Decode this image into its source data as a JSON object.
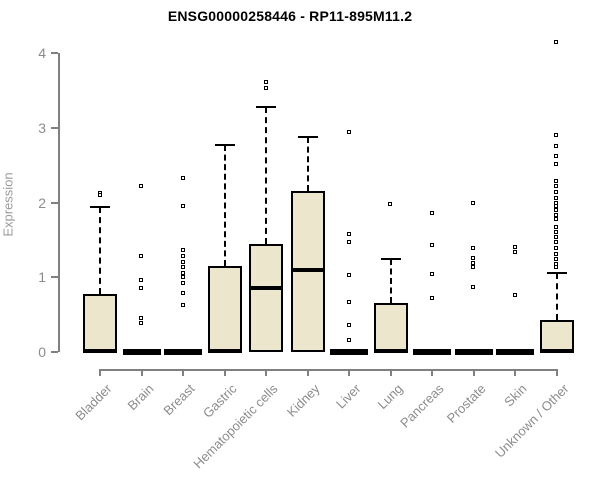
{
  "chart_data": {
    "type": "boxplot",
    "title": "ENSG00000258446 - RP11-895M11.2",
    "ylabel": "Expression",
    "xlabel": "",
    "ylim": [
      0,
      4
    ],
    "yticks": [
      "0",
      "1",
      "2",
      "3",
      "4"
    ],
    "grid": false,
    "legend": "none",
    "categories": [
      "Bladder",
      "Brain",
      "Breast",
      "Gastric",
      "Hematopoietic cells",
      "Kidney",
      "Liver",
      "Lung",
      "Pancreas",
      "Prostate",
      "Skin",
      "Unknown / Other"
    ],
    "boxes": [
      {
        "category": "Bladder",
        "min": 0,
        "q1": 0,
        "median": 0.02,
        "q3": 0.78,
        "max": 1.94,
        "outliers": [
          2.12,
          2.09
        ]
      },
      {
        "category": "Brain",
        "min": 0,
        "q1": 0,
        "median": 0,
        "q3": 0,
        "max": 0,
        "outliers": [
          2.21,
          1.28,
          0.95,
          0.85,
          0.45,
          0.38
        ]
      },
      {
        "category": "Breast",
        "min": 0,
        "q1": 0,
        "median": 0,
        "q3": 0,
        "max": 0,
        "outliers": [
          2.32,
          1.94,
          1.36,
          1.28,
          1.2,
          1.13,
          1.05,
          0.99,
          0.92,
          0.78,
          0.62
        ]
      },
      {
        "category": "Gastric",
        "min": 0,
        "q1": 0,
        "median": 0.02,
        "q3": 1.15,
        "max": 2.77,
        "outliers": []
      },
      {
        "category": "Hematopoietic cells",
        "min": 0,
        "q1": 0,
        "median": 0.86,
        "q3": 1.45,
        "max": 3.28,
        "outliers": [
          3.6,
          3.53
        ]
      },
      {
        "category": "Kidney",
        "min": 0,
        "q1": 0,
        "median": 1.1,
        "q3": 2.15,
        "max": 2.87,
        "outliers": []
      },
      {
        "category": "Liver",
        "min": 0,
        "q1": 0,
        "median": 0,
        "q3": 0,
        "max": 0,
        "outliers": [
          2.93,
          1.57,
          1.46,
          1.03,
          0.66,
          0.36,
          0.15
        ]
      },
      {
        "category": "Lung",
        "min": 0,
        "q1": 0,
        "median": 0.02,
        "q3": 0.66,
        "max": 1.24,
        "outliers": [
          1.97
        ]
      },
      {
        "category": "Pancreas",
        "min": 0,
        "q1": 0,
        "median": 0,
        "q3": 0,
        "max": 0,
        "outliers": [
          1.85,
          1.43,
          1.04,
          0.72
        ]
      },
      {
        "category": "Prostate",
        "min": 0,
        "q1": 0,
        "median": 0,
        "q3": 0,
        "max": 0,
        "outliers": [
          1.99,
          1.38,
          1.25,
          1.19,
          1.13,
          0.86
        ]
      },
      {
        "category": "Skin",
        "min": 0,
        "q1": 0,
        "median": 0,
        "q3": 0,
        "max": 0,
        "outliers": [
          1.4,
          1.33,
          0.75
        ]
      },
      {
        "category": "Unknown / Other",
        "min": 0,
        "q1": 0,
        "median": 0.02,
        "q3": 0.43,
        "max": 1.06,
        "outliers": [
          4.14,
          2.89,
          2.75,
          2.61,
          2.51,
          2.28,
          2.21,
          2.14,
          2.06,
          1.99,
          1.95,
          1.89,
          1.83,
          1.77,
          1.67,
          1.6,
          1.53,
          1.46,
          1.38,
          1.31,
          1.24,
          1.17,
          1.13
        ]
      }
    ],
    "style": {
      "box_fill": "#ECE6CD",
      "box_border": "#000000",
      "axis_color": "#808080",
      "tick_label_color": "#8c8c8c",
      "title_color": "#000000",
      "ylabel_color": "#9a9a9a"
    }
  }
}
